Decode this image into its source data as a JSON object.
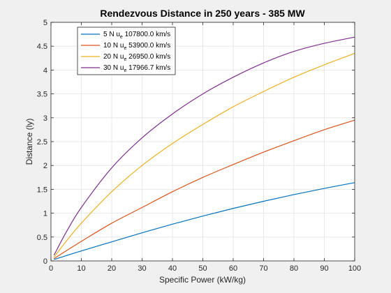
{
  "chart_data": {
    "type": "line",
    "title": "Rendezvous Distance in 250 years - 385 MW",
    "xlabel": "Specific Power (kW/kg)",
    "ylabel": "Distance (ly)",
    "xlim": [
      0,
      100
    ],
    "ylim": [
      0,
      5
    ],
    "xticks": [
      0,
      10,
      20,
      30,
      40,
      50,
      60,
      70,
      80,
      90,
      100
    ],
    "yticks": [
      0,
      0.5,
      1,
      1.5,
      2,
      2.5,
      3,
      3.5,
      4,
      4.5,
      5
    ],
    "xtick_labels": [
      "0",
      "10",
      "20",
      "30",
      "40",
      "50",
      "60",
      "70",
      "80",
      "90",
      "100"
    ],
    "ytick_labels": [
      "0",
      "0.5",
      "1",
      "1.5",
      "2",
      "2.5",
      "3",
      "3.5",
      "4",
      "4.5",
      "5"
    ],
    "grid": true,
    "legend_position": "top-left",
    "series": [
      {
        "name": "5 N u",
        "name_sub": "e",
        "name_rest": " 107800.0 km/s",
        "color": "#0072BD",
        "x": [
          1,
          5,
          10,
          20,
          30,
          40,
          50,
          60,
          70,
          80,
          90,
          100
        ],
        "y": [
          0.03,
          0.11,
          0.21,
          0.4,
          0.59,
          0.77,
          0.94,
          1.1,
          1.25,
          1.39,
          1.52,
          1.64
        ]
      },
      {
        "name": "10 N u",
        "name_sub": "e",
        "name_rest": " 53900.0 km/s",
        "color": "#D95319",
        "x": [
          1,
          5,
          10,
          20,
          30,
          40,
          50,
          60,
          70,
          80,
          90,
          100
        ],
        "y": [
          0.05,
          0.21,
          0.41,
          0.79,
          1.12,
          1.45,
          1.75,
          2.02,
          2.28,
          2.52,
          2.75,
          2.95
        ]
      },
      {
        "name": "20 N u",
        "name_sub": "e",
        "name_rest": " 26950.0 km/s",
        "color": "#EDB120",
        "x": [
          1,
          5,
          10,
          20,
          30,
          40,
          50,
          60,
          70,
          80,
          90,
          100
        ],
        "y": [
          0.08,
          0.41,
          0.79,
          1.45,
          2.0,
          2.46,
          2.86,
          3.23,
          3.55,
          3.85,
          4.11,
          4.35
        ]
      },
      {
        "name": "30 N u",
        "name_sub": "e",
        "name_rest": " 17966.7 km/s",
        "color": "#7E2F8E",
        "x": [
          1,
          5,
          10,
          20,
          30,
          40,
          50,
          60,
          70,
          80,
          90,
          100
        ],
        "y": [
          0.12,
          0.6,
          1.12,
          1.95,
          2.58,
          3.08,
          3.5,
          3.85,
          4.15,
          4.39,
          4.56,
          4.69
        ]
      }
    ]
  }
}
